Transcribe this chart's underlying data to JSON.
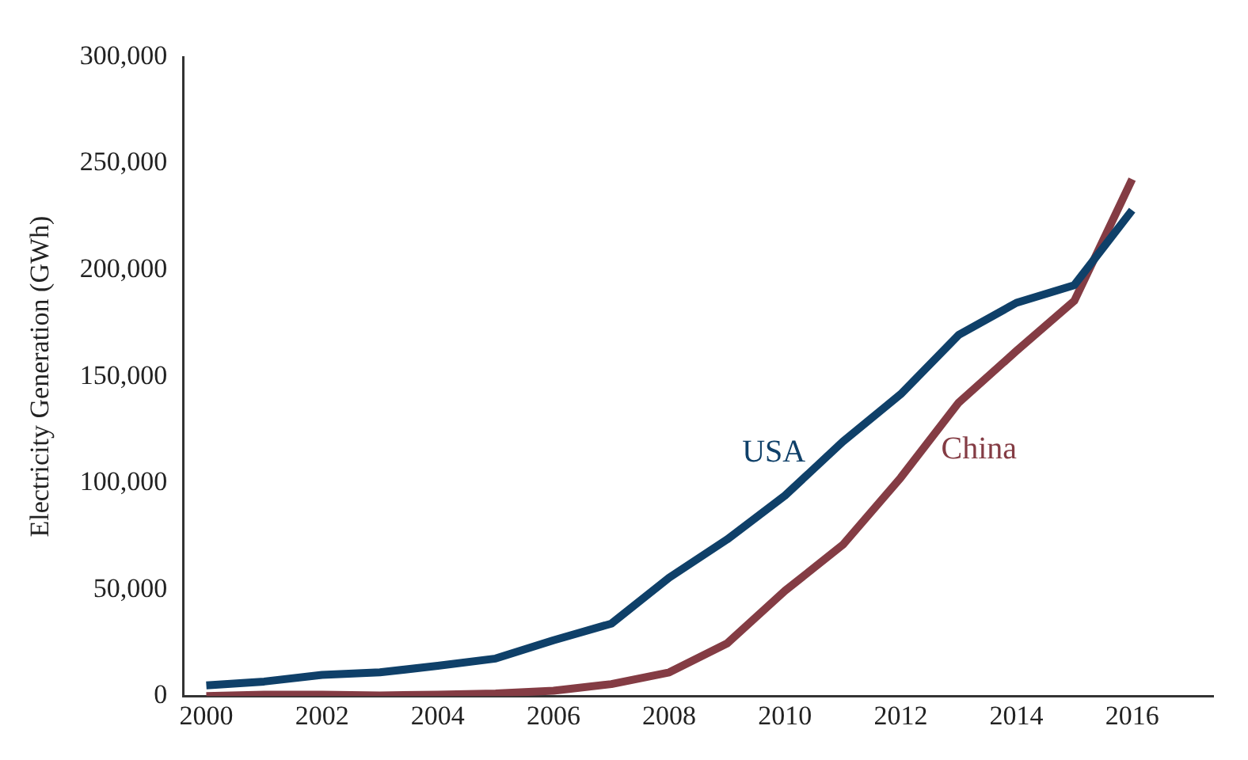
{
  "chart_data": {
    "type": "line",
    "ylabel": "Electricity Generation (GWh)",
    "x": [
      2000,
      2001,
      2002,
      2003,
      2004,
      2005,
      2006,
      2007,
      2008,
      2009,
      2010,
      2011,
      2012,
      2013,
      2014,
      2015,
      2016
    ],
    "series": [
      {
        "name": "USA",
        "color": "#0f4069",
        "values": [
          5000,
          6800,
          9900,
          11100,
          14200,
          17600,
          26200,
          34000,
          55600,
          73500,
          94100,
          119400,
          141700,
          169500,
          184600,
          192900,
          228100
        ]
      },
      {
        "name": "China",
        "color": "#843c44",
        "values": [
          0,
          600,
          600,
          300,
          600,
          1200,
          2500,
          5600,
          11100,
          24700,
          49400,
          71000,
          102500,
          137700,
          162000,
          185500,
          242600
        ]
      }
    ],
    "xlim": [
      1999.6,
      2017.4
    ],
    "xticks": [
      2000,
      2002,
      2004,
      2006,
      2008,
      2010,
      2012,
      2014,
      2016
    ],
    "ylim": [
      0,
      300000
    ],
    "yticks": [
      0,
      {
        "value": 50000,
        "label": "50,000"
      },
      {
        "value": 100000,
        "label": "100,000"
      },
      {
        "value": 150000,
        "label": "150,000"
      },
      {
        "value": 200000,
        "label": "200,000"
      },
      {
        "value": 250000,
        "label": "250,000"
      },
      {
        "value": 300000,
        "label": "300,000"
      }
    ],
    "grid": false,
    "legend": false,
    "marker": "none",
    "line_style": "solid"
  }
}
